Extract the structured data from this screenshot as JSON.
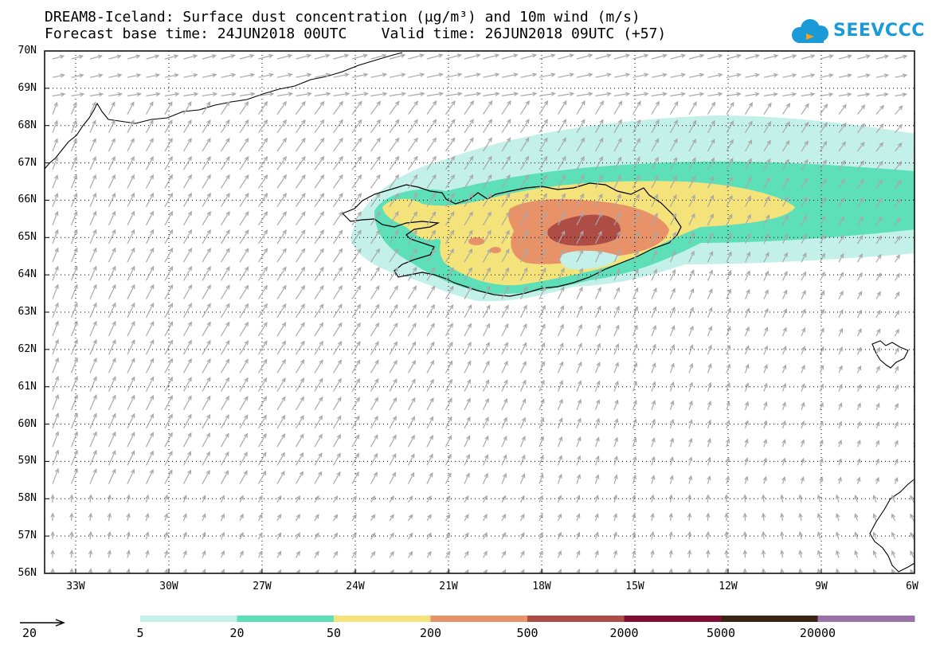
{
  "title_line1": "DREAM8-Iceland: Surface dust concentration (µg/m³) and 10m wind (m/s)",
  "title_line2": "Forecast base time: 24JUN2018 00UTC    Valid time: 26JUN2018 09UTC (+57)",
  "logo_text": "SEEVCCC",
  "lat_labels": [
    "70N",
    "69N",
    "68N",
    "67N",
    "66N",
    "65N",
    "64N",
    "63N",
    "62N",
    "61N",
    "60N",
    "59N",
    "58N",
    "57N",
    "56N"
  ],
  "lon_labels": [
    "33W",
    "30W",
    "27W",
    "24W",
    "21W",
    "18W",
    "15W",
    "12W",
    "9W",
    "6W"
  ],
  "map_extent": {
    "lon": [
      -34,
      -6
    ],
    "lat": [
      56,
      70
    ]
  },
  "legend": {
    "labels": [
      "5",
      "20",
      "50",
      "200",
      "500",
      "2000",
      "5000",
      "20000"
    ],
    "colors": [
      "#c3f0e8",
      "#5ddfb8",
      "#f4e27a",
      "#e8926a",
      "#ad4d45",
      "#820c33",
      "#3c2414",
      "#9872a8"
    ]
  },
  "wind_reference": {
    "label": "20"
  },
  "colors": {
    "arrow": "#a8a8a8",
    "coast": "#000000"
  }
}
